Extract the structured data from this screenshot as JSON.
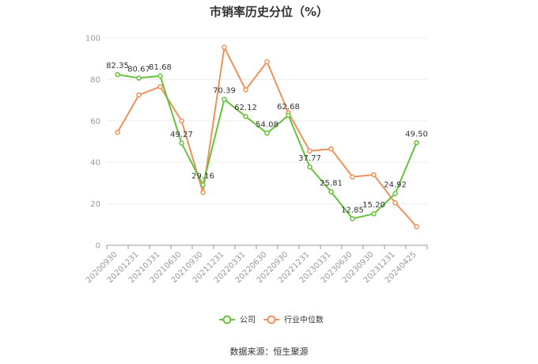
{
  "chart_data": {
    "type": "line",
    "title": "市销率历史分位（%）",
    "categories": [
      "20200930",
      "20201231",
      "20210331",
      "20210630",
      "20210930",
      "20211231",
      "20220331",
      "20220630",
      "20220930",
      "20221231",
      "20230331",
      "20230630",
      "20230930",
      "20231231",
      "20240425"
    ],
    "series": [
      {
        "name": "公司",
        "color": "#66c23a",
        "values": [
          82.35,
          80.67,
          81.68,
          49.27,
          29.16,
          70.39,
          62.12,
          54.08,
          62.68,
          37.77,
          25.81,
          12.85,
          15.2,
          24.92,
          49.5
        ],
        "labels": [
          "82.35",
          "80.67",
          "81.68",
          "49.27",
          "29.16",
          "70.39",
          "62.12",
          "54.08",
          "62.68",
          "37.77",
          "25.81",
          "12.85",
          "15.20",
          "24.92",
          "49.50"
        ]
      },
      {
        "name": "行业中位数",
        "color": "#f0915a",
        "values": [
          54.5,
          72.5,
          76.5,
          60.0,
          25.5,
          95.5,
          75.0,
          88.5,
          64.0,
          45.5,
          46.5,
          33.0,
          34.0,
          20.5,
          9.0
        ]
      }
    ],
    "ylim": [
      0,
      100
    ],
    "yticks": [
      "0",
      "20",
      "40",
      "60",
      "80",
      "100"
    ],
    "xlabel": "",
    "ylabel": "",
    "grid": true,
    "legend_position": "bottom"
  },
  "source_text": "数据来源：恒生聚源"
}
